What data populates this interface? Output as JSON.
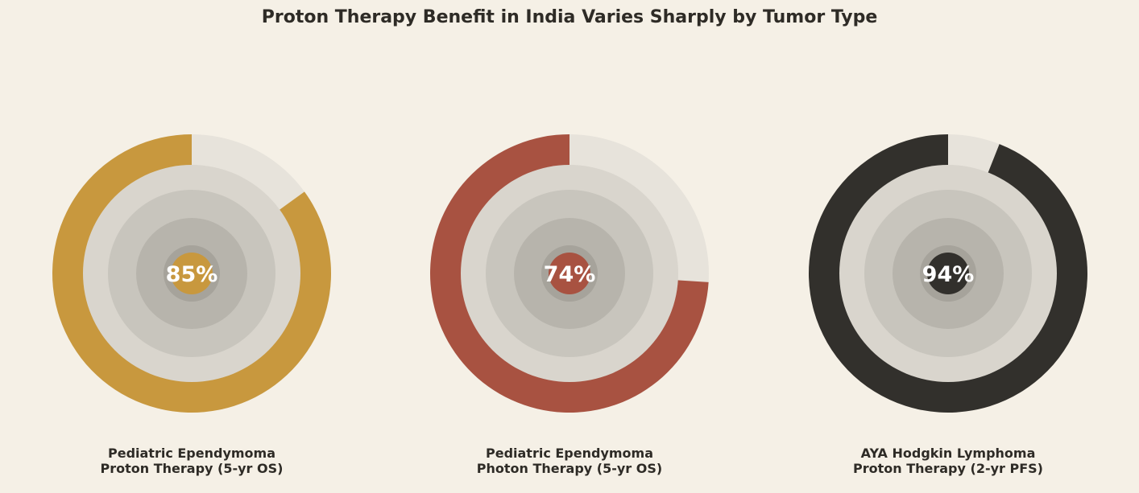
{
  "chart_data": {
    "type": "pie",
    "title": "Proton Therapy Benefit in India Varies Sharply by Tumor Type",
    "colors": {
      "background": "#f5f0e6",
      "track": "#e7e3db",
      "rings": [
        "#d9d5cd",
        "#c8c5bd",
        "#b7b4ac",
        "#a6a39b"
      ],
      "value_text": "#ffffff"
    },
    "gauges": [
      {
        "value": 85,
        "label": "85%",
        "caption_line1": "Pediatric Ependymoma",
        "caption_line2": "Proton Therapy (5-yr OS)",
        "color": "#c8983e"
      },
      {
        "value": 74,
        "label": "74%",
        "caption_line1": "Pediatric Ependymoma",
        "caption_line2": "Photon Therapy (5-yr OS)",
        "color": "#a85241"
      },
      {
        "value": 94,
        "label": "94%",
        "caption_line1": "AYA Hodgkin Lymphoma",
        "caption_line2": "Proton Therapy (2-yr PFS)",
        "color": "#32302c"
      }
    ]
  }
}
